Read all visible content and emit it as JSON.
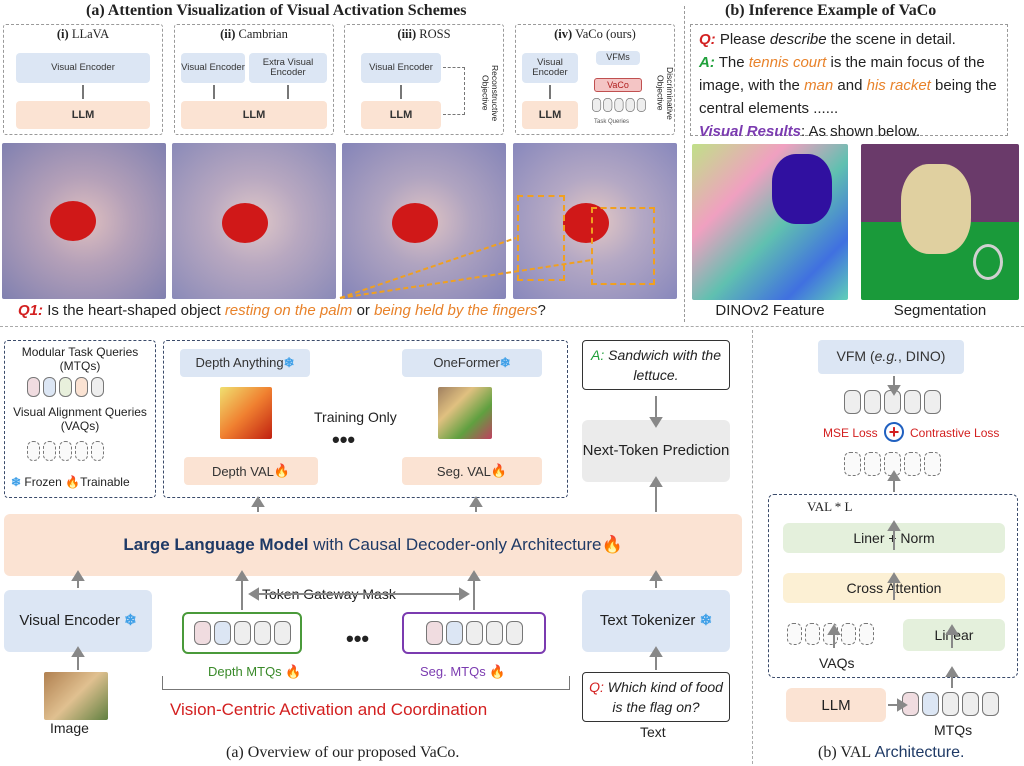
{
  "section_a_title": "(a) Attention Visualization of Visual Activation Schemes",
  "section_b_title": "(b) Inference Example of VaCo",
  "panels": {
    "llava": {
      "num": "(i)",
      "name": "LLaVA",
      "encoder": "Visual Encoder",
      "llm": "LLM"
    },
    "cambrian": {
      "num": "(ii)",
      "name": "Cambrian",
      "encoder": "Visual Encoder",
      "extra": "Extra Visual Encoder",
      "llm": "LLM"
    },
    "ross": {
      "num": "(iii)",
      "name": "ROSS",
      "encoder": "Visual Encoder",
      "llm": "LLM",
      "objective": "Reconstructive Objective"
    },
    "vaco": {
      "num": "(iv)",
      "name": "VaCo (ours)",
      "encoder": "Visual Encoder",
      "llm": "LLM",
      "vfms": "VFMs",
      "vaco_box": "VaCo",
      "task_queries": "Task Queries",
      "objective": "Discriminative Objective"
    }
  },
  "q1": {
    "label": "Q1:",
    "text1": "Is the heart-shaped object",
    "opt1": "resting on the palm",
    "or": "or",
    "opt2": "being held by the fingers",
    "end": "?"
  },
  "inference": {
    "q_label": "Q:",
    "q_text1": "Please",
    "q_italic": "describe",
    "q_text2": "the scene in detail.",
    "a_label": "A:",
    "a_t1": "The",
    "a_court": "tennis court",
    "a_t2": "is the main focus of the image, with the",
    "a_man": "man",
    "a_and": "and",
    "a_his": "his",
    "a_racket": "racket",
    "a_t3": "being the central elements ......",
    "vr_label": "Visual Results",
    "vr_text": ": As shown below.",
    "dino_caption": "DINOv2 Feature",
    "seg_caption": "Segmentation"
  },
  "overview": {
    "mtq_title": "Modular Task Queries (MTQs)",
    "vaq_title": "Visual Alignment Queries (VAQs)",
    "frozen": "Frozen",
    "trainable": "Trainable",
    "depth_anything": "Depth Anything",
    "oneformer": "OneFormer",
    "training_only": "Training Only",
    "dots": "•••",
    "depth_val": "Depth VAL",
    "seg_val": "Seg. VAL",
    "answer_label": "A:",
    "answer_text": "Sandwich with the lettuce.",
    "next_token": "Next-Token Prediction",
    "llm_bold": "Large Language Model",
    "llm_rest": "with Causal Decoder-only Architecture",
    "visual_encoder": "Visual Encoder",
    "token_gateway": "Token Gateway Mask",
    "depth_mtqs": "Depth MTQs",
    "seg_mtqs": "Seg. MTQs",
    "text_tokenizer": "Text Tokenizer",
    "question_label": "Q:",
    "question_text": "Which kind of food is the flag on?",
    "image_label": "Image",
    "text_label": "Text",
    "vision_centric": "Vision-Centric Activation and Coordination",
    "caption": "(a)   Overview of our proposed VaCo."
  },
  "val_arch": {
    "vfm": "VFM (e.g., DINO)",
    "vfm_plain1": "VFM (",
    "vfm_italic": "e.g.",
    "vfm_plain2": ", DINO)",
    "mse": "MSE Loss",
    "contrastive": "Contrastive Loss",
    "val_l": "VAL * L",
    "liner_norm": "Liner + Norm",
    "cross_attention": "Cross Attention",
    "linear": "Linear",
    "vaqs": "VAQs",
    "llm": "LLM",
    "mtqs": "MTQs",
    "caption1": "(b) VAL",
    "caption2": "Architecture."
  },
  "icons": {
    "snowflake": "❄",
    "fire": "🔥",
    "plus": "+"
  },
  "colors": {
    "accent_orange": "#e8822a",
    "red": "#d32020",
    "green": "#1fa03a",
    "purple": "#7b3bb0",
    "blue_box": "#dce6f4",
    "peach_box": "#fbe3d3"
  }
}
